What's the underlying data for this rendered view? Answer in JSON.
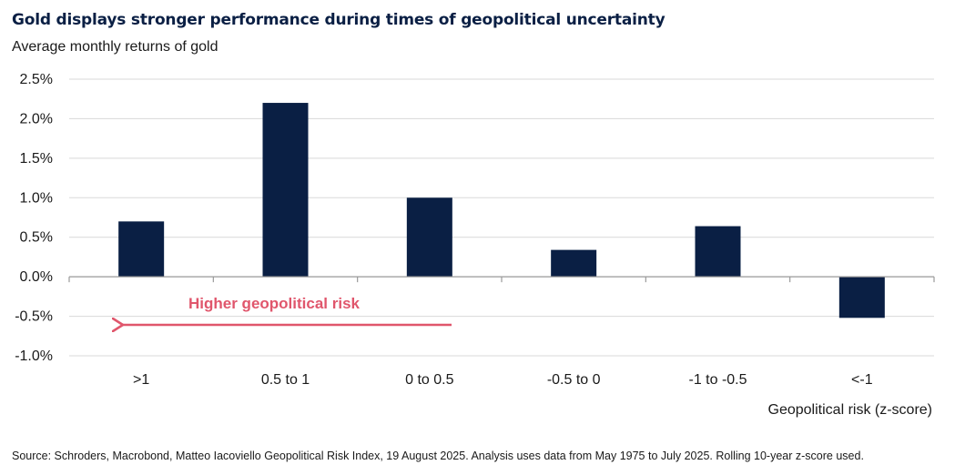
{
  "title": "Gold displays stronger performance during times of geopolitical uncertainty",
  "subtitle": "Average monthly returns of gold",
  "source": "Source: Schroders, Macrobond, Matteo Iacoviello Geopolitical Risk Index, 19 August 2025. Analysis uses data from May 1975 to July 2025. Rolling 10-year z-score used.",
  "annotation": "Higher geopolitical risk",
  "colors": {
    "bar": "#0a1f44",
    "arrow": "#e0566c",
    "grid": "#d9d9d9",
    "axis": "#999999"
  },
  "chart_data": {
    "type": "bar",
    "title": "Gold displays stronger performance during times of geopolitical uncertainty",
    "ylabel": "Average monthly returns of gold",
    "xlabel": "Geopolitical risk (z-score)",
    "categories": [
      ">1",
      "0.5 to 1",
      "0 to 0.5",
      "-0.5 to 0",
      "-1 to -0.5",
      "<-1"
    ],
    "values": [
      0.7,
      2.2,
      1.0,
      0.34,
      0.64,
      -0.52
    ],
    "ylim": [
      -1.0,
      2.5
    ],
    "yticks": [
      2.5,
      2.0,
      1.5,
      1.0,
      0.5,
      0.0,
      -0.5,
      -1.0
    ],
    "ytick_labels": [
      "2.5%",
      "2.0%",
      "1.5%",
      "1.0%",
      "0.5%",
      "0.0%",
      "-0.5%",
      "-1.0%"
    ],
    "grid": true
  }
}
